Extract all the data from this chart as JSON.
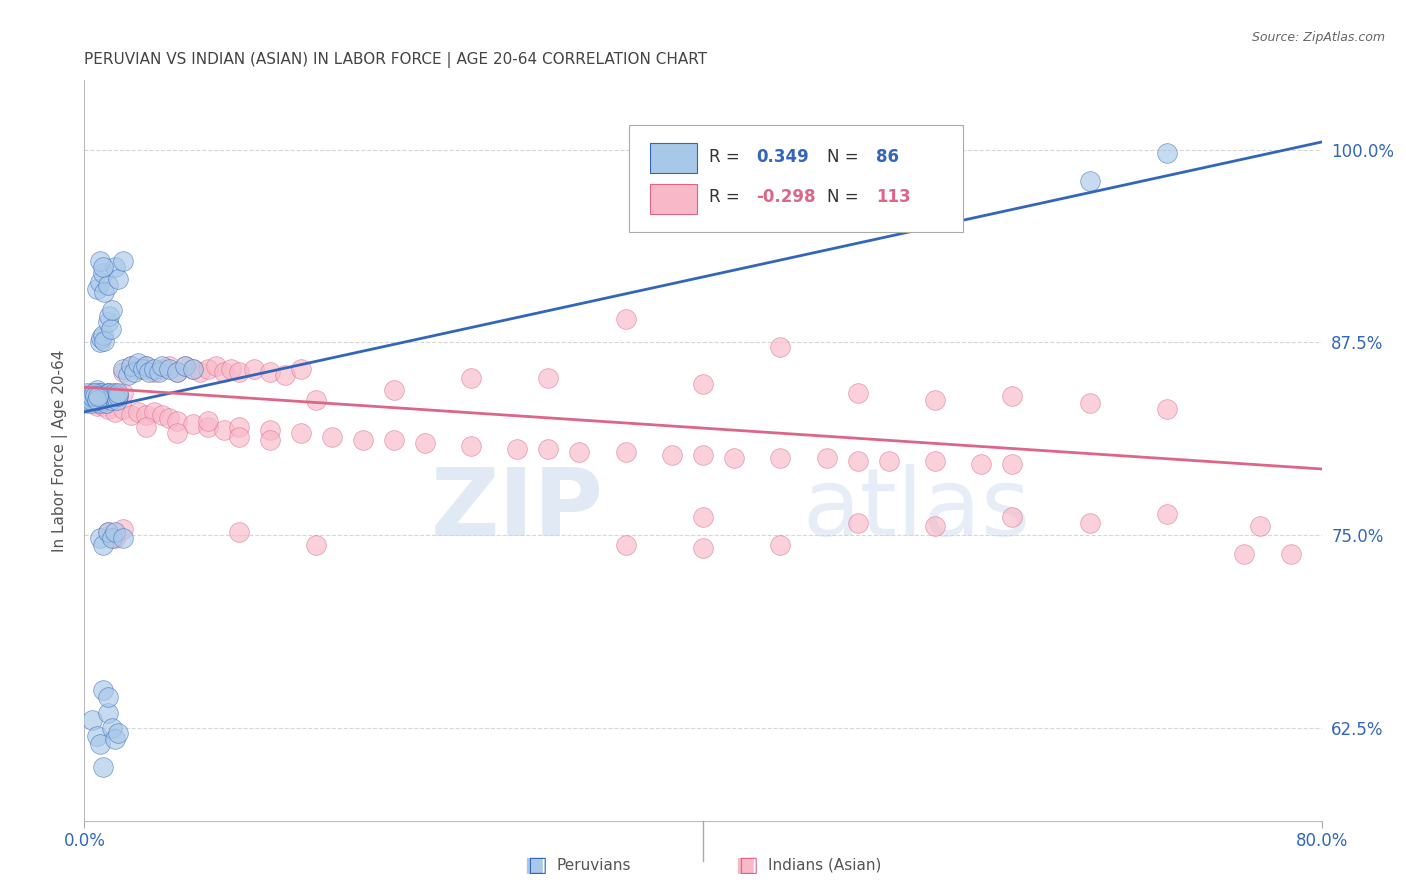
{
  "title": "PERUVIAN VS INDIAN (ASIAN) IN LABOR FORCE | AGE 20-64 CORRELATION CHART",
  "source": "Source: ZipAtlas.com",
  "ylabel": "In Labor Force | Age 20-64",
  "ytick_labels": [
    "62.5%",
    "75.0%",
    "87.5%",
    "100.0%"
  ],
  "ytick_values": [
    0.625,
    0.75,
    0.875,
    1.0
  ],
  "xmin": 0.0,
  "xmax": 0.8,
  "ymin": 0.565,
  "ymax": 1.045,
  "legend_r_blue": "0.349",
  "legend_n_blue": "86",
  "legend_r_pink": "-0.298",
  "legend_n_pink": "113",
  "watermark_zip": "ZIP",
  "watermark_atlas": "atlas",
  "blue_fill": "#A8C8E8",
  "pink_fill": "#F8B8C8",
  "blue_edge": "#3366BB",
  "pink_edge": "#DD6688",
  "blue_line": "#3366BB",
  "pink_line": "#DD6688",
  "title_color": "#444444",
  "axis_label_color": "#3366BB",
  "grid_color": "#CCCCCC",
  "blue_scatter": [
    [
      0.002,
      0.84
    ],
    [
      0.003,
      0.838
    ],
    [
      0.004,
      0.836
    ],
    [
      0.005,
      0.842
    ],
    [
      0.006,
      0.84
    ],
    [
      0.007,
      0.838
    ],
    [
      0.008,
      0.844
    ],
    [
      0.009,
      0.842
    ],
    [
      0.01,
      0.836
    ],
    [
      0.01,
      0.84
    ],
    [
      0.011,
      0.842
    ],
    [
      0.012,
      0.838
    ],
    [
      0.013,
      0.84
    ],
    [
      0.014,
      0.836
    ],
    [
      0.015,
      0.842
    ],
    [
      0.015,
      0.84
    ],
    [
      0.016,
      0.842
    ],
    [
      0.017,
      0.838
    ],
    [
      0.018,
      0.84
    ],
    [
      0.019,
      0.842
    ],
    [
      0.02,
      0.84
    ],
    [
      0.021,
      0.838
    ],
    [
      0.022,
      0.84
    ],
    [
      0.022,
      0.842
    ],
    [
      0.002,
      0.842
    ],
    [
      0.003,
      0.84
    ],
    [
      0.004,
      0.838
    ],
    [
      0.005,
      0.84
    ],
    [
      0.006,
      0.842
    ],
    [
      0.007,
      0.84
    ],
    [
      0.008,
      0.838
    ],
    [
      0.009,
      0.84
    ],
    [
      0.01,
      0.875
    ],
    [
      0.011,
      0.878
    ],
    [
      0.012,
      0.88
    ],
    [
      0.013,
      0.876
    ],
    [
      0.015,
      0.888
    ],
    [
      0.016,
      0.892
    ],
    [
      0.017,
      0.884
    ],
    [
      0.018,
      0.896
    ],
    [
      0.008,
      0.91
    ],
    [
      0.01,
      0.914
    ],
    [
      0.012,
      0.92
    ],
    [
      0.013,
      0.908
    ],
    [
      0.015,
      0.912
    ],
    [
      0.02,
      0.924
    ],
    [
      0.022,
      0.916
    ],
    [
      0.025,
      0.928
    ],
    [
      0.01,
      0.928
    ],
    [
      0.012,
      0.924
    ],
    [
      0.025,
      0.858
    ],
    [
      0.028,
      0.854
    ],
    [
      0.03,
      0.86
    ],
    [
      0.032,
      0.856
    ],
    [
      0.035,
      0.862
    ],
    [
      0.038,
      0.858
    ],
    [
      0.04,
      0.86
    ],
    [
      0.042,
      0.856
    ],
    [
      0.045,
      0.858
    ],
    [
      0.048,
      0.856
    ],
    [
      0.05,
      0.86
    ],
    [
      0.055,
      0.858
    ],
    [
      0.06,
      0.856
    ],
    [
      0.065,
      0.86
    ],
    [
      0.07,
      0.858
    ],
    [
      0.01,
      0.748
    ],
    [
      0.012,
      0.744
    ],
    [
      0.015,
      0.752
    ],
    [
      0.018,
      0.748
    ],
    [
      0.02,
      0.752
    ],
    [
      0.025,
      0.748
    ],
    [
      0.005,
      0.63
    ],
    [
      0.008,
      0.62
    ],
    [
      0.01,
      0.615
    ],
    [
      0.012,
      0.6
    ],
    [
      0.015,
      0.635
    ],
    [
      0.018,
      0.625
    ],
    [
      0.02,
      0.618
    ],
    [
      0.022,
      0.622
    ],
    [
      0.012,
      0.65
    ],
    [
      0.015,
      0.645
    ],
    [
      0.7,
      0.998
    ],
    [
      0.65,
      0.98
    ]
  ],
  "pink_scatter": [
    [
      0.008,
      0.84
    ],
    [
      0.01,
      0.842
    ],
    [
      0.012,
      0.84
    ],
    [
      0.015,
      0.842
    ],
    [
      0.018,
      0.84
    ],
    [
      0.02,
      0.842
    ],
    [
      0.022,
      0.84
    ],
    [
      0.025,
      0.842
    ],
    [
      0.002,
      0.836
    ],
    [
      0.004,
      0.838
    ],
    [
      0.006,
      0.836
    ],
    [
      0.008,
      0.834
    ],
    [
      0.01,
      0.836
    ],
    [
      0.012,
      0.834
    ],
    [
      0.014,
      0.836
    ],
    [
      0.025,
      0.856
    ],
    [
      0.03,
      0.86
    ],
    [
      0.035,
      0.858
    ],
    [
      0.04,
      0.86
    ],
    [
      0.045,
      0.856
    ],
    [
      0.05,
      0.858
    ],
    [
      0.055,
      0.86
    ],
    [
      0.06,
      0.856
    ],
    [
      0.065,
      0.86
    ],
    [
      0.07,
      0.858
    ],
    [
      0.075,
      0.856
    ],
    [
      0.08,
      0.858
    ],
    [
      0.085,
      0.86
    ],
    [
      0.09,
      0.856
    ],
    [
      0.095,
      0.858
    ],
    [
      0.1,
      0.856
    ],
    [
      0.11,
      0.858
    ],
    [
      0.12,
      0.856
    ],
    [
      0.13,
      0.854
    ],
    [
      0.14,
      0.858
    ],
    [
      0.015,
      0.832
    ],
    [
      0.02,
      0.83
    ],
    [
      0.025,
      0.832
    ],
    [
      0.03,
      0.828
    ],
    [
      0.035,
      0.83
    ],
    [
      0.04,
      0.828
    ],
    [
      0.045,
      0.83
    ],
    [
      0.05,
      0.828
    ],
    [
      0.055,
      0.826
    ],
    [
      0.06,
      0.824
    ],
    [
      0.07,
      0.822
    ],
    [
      0.08,
      0.82
    ],
    [
      0.09,
      0.818
    ],
    [
      0.1,
      0.82
    ],
    [
      0.12,
      0.818
    ],
    [
      0.14,
      0.816
    ],
    [
      0.16,
      0.814
    ],
    [
      0.18,
      0.812
    ],
    [
      0.2,
      0.812
    ],
    [
      0.22,
      0.81
    ],
    [
      0.25,
      0.808
    ],
    [
      0.28,
      0.806
    ],
    [
      0.3,
      0.806
    ],
    [
      0.32,
      0.804
    ],
    [
      0.35,
      0.804
    ],
    [
      0.38,
      0.802
    ],
    [
      0.4,
      0.802
    ],
    [
      0.42,
      0.8
    ],
    [
      0.45,
      0.8
    ],
    [
      0.48,
      0.8
    ],
    [
      0.5,
      0.798
    ],
    [
      0.52,
      0.798
    ],
    [
      0.55,
      0.798
    ],
    [
      0.58,
      0.796
    ],
    [
      0.6,
      0.796
    ],
    [
      0.35,
      0.89
    ],
    [
      0.45,
      0.872
    ],
    [
      0.25,
      0.852
    ],
    [
      0.3,
      0.852
    ],
    [
      0.2,
      0.844
    ],
    [
      0.4,
      0.848
    ],
    [
      0.15,
      0.838
    ],
    [
      0.5,
      0.842
    ],
    [
      0.55,
      0.838
    ],
    [
      0.6,
      0.84
    ],
    [
      0.65,
      0.836
    ],
    [
      0.7,
      0.832
    ],
    [
      0.4,
      0.762
    ],
    [
      0.5,
      0.758
    ],
    [
      0.55,
      0.756
    ],
    [
      0.6,
      0.762
    ],
    [
      0.65,
      0.758
    ],
    [
      0.7,
      0.764
    ],
    [
      0.35,
      0.744
    ],
    [
      0.4,
      0.742
    ],
    [
      0.45,
      0.744
    ],
    [
      0.1,
      0.752
    ],
    [
      0.15,
      0.744
    ],
    [
      0.75,
      0.738
    ],
    [
      0.76,
      0.756
    ],
    [
      0.78,
      0.738
    ],
    [
      0.015,
      0.752
    ],
    [
      0.02,
      0.748
    ],
    [
      0.025,
      0.754
    ],
    [
      0.04,
      0.82
    ],
    [
      0.06,
      0.816
    ],
    [
      0.08,
      0.824
    ],
    [
      0.1,
      0.814
    ],
    [
      0.12,
      0.812
    ]
  ],
  "blue_line_x": [
    0.0,
    0.8
  ],
  "blue_line_y": [
    0.83,
    1.005
  ],
  "pink_line_x": [
    0.0,
    0.8
  ],
  "pink_line_y": [
    0.846,
    0.793
  ]
}
